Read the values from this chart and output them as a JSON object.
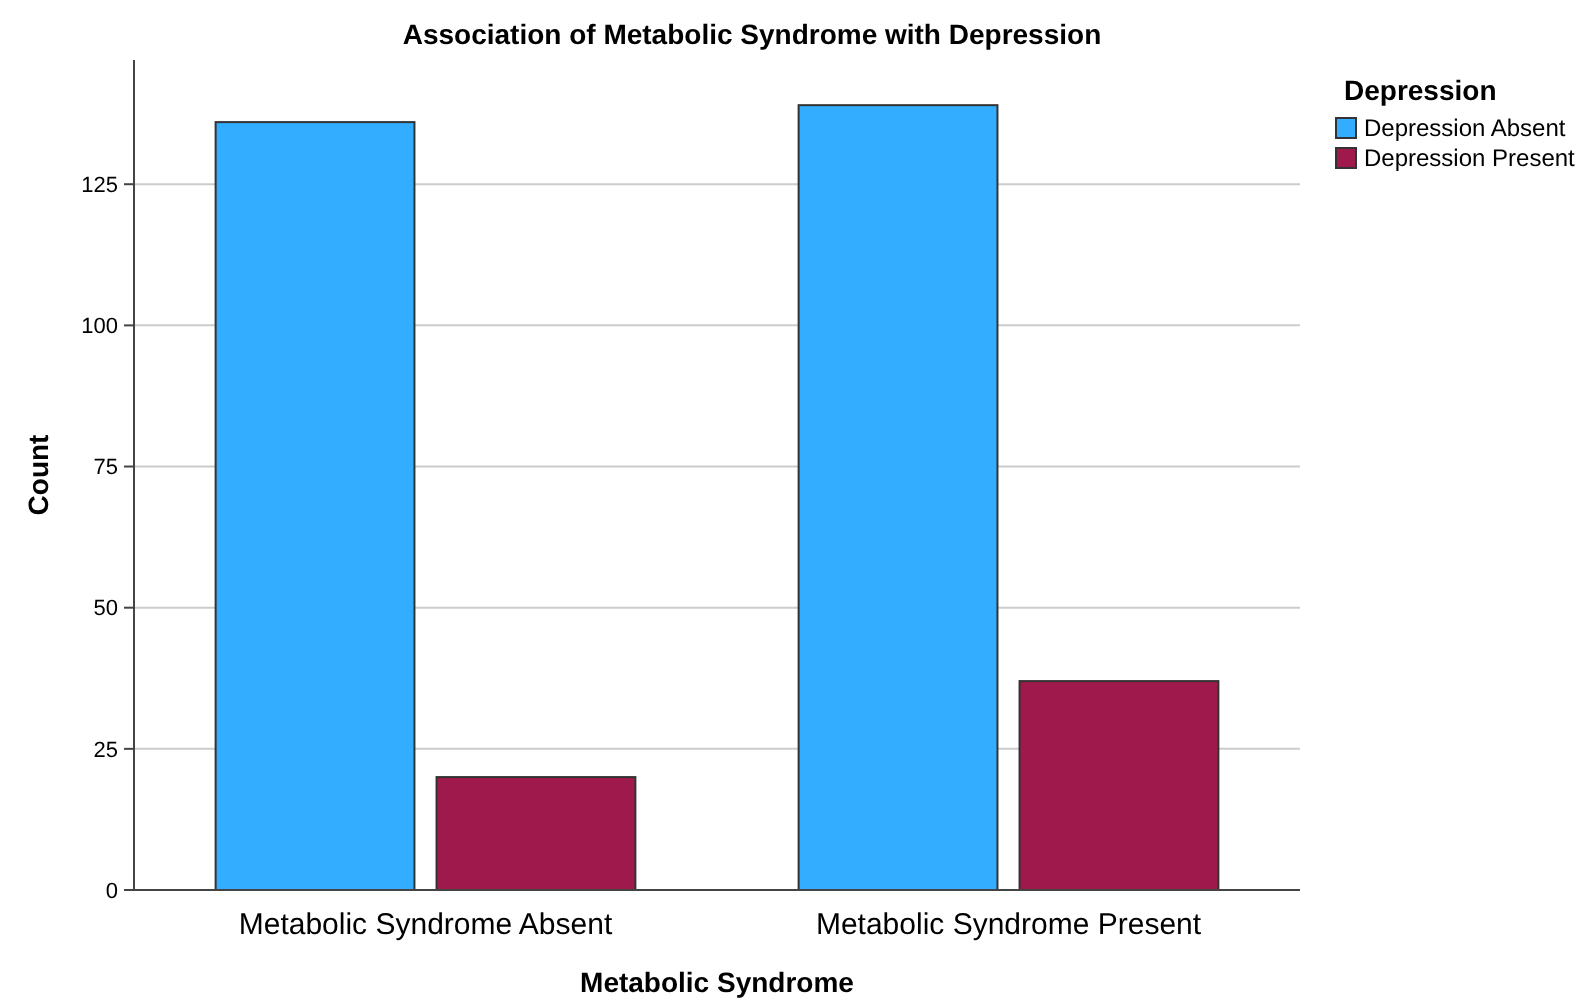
{
  "chart_data": {
    "type": "bar",
    "title": "Association of Metabolic Syndrome with Depression",
    "xlabel": "Metabolic Syndrome",
    "ylabel": "Count",
    "legend_title": "Depression",
    "categories": [
      "Metabolic Syndrome Absent",
      "Metabolic Syndrome Present"
    ],
    "series": [
      {
        "name": "Depression Absent",
        "color": "#33adff",
        "values": [
          136,
          139
        ]
      },
      {
        "name": "Depression Present",
        "color": "#a0194c",
        "values": [
          20,
          37
        ]
      }
    ],
    "ylim": [
      0,
      147
    ],
    "yticks": [
      0,
      25,
      50,
      75,
      100,
      125
    ],
    "grid": "y",
    "legend": "top right"
  }
}
